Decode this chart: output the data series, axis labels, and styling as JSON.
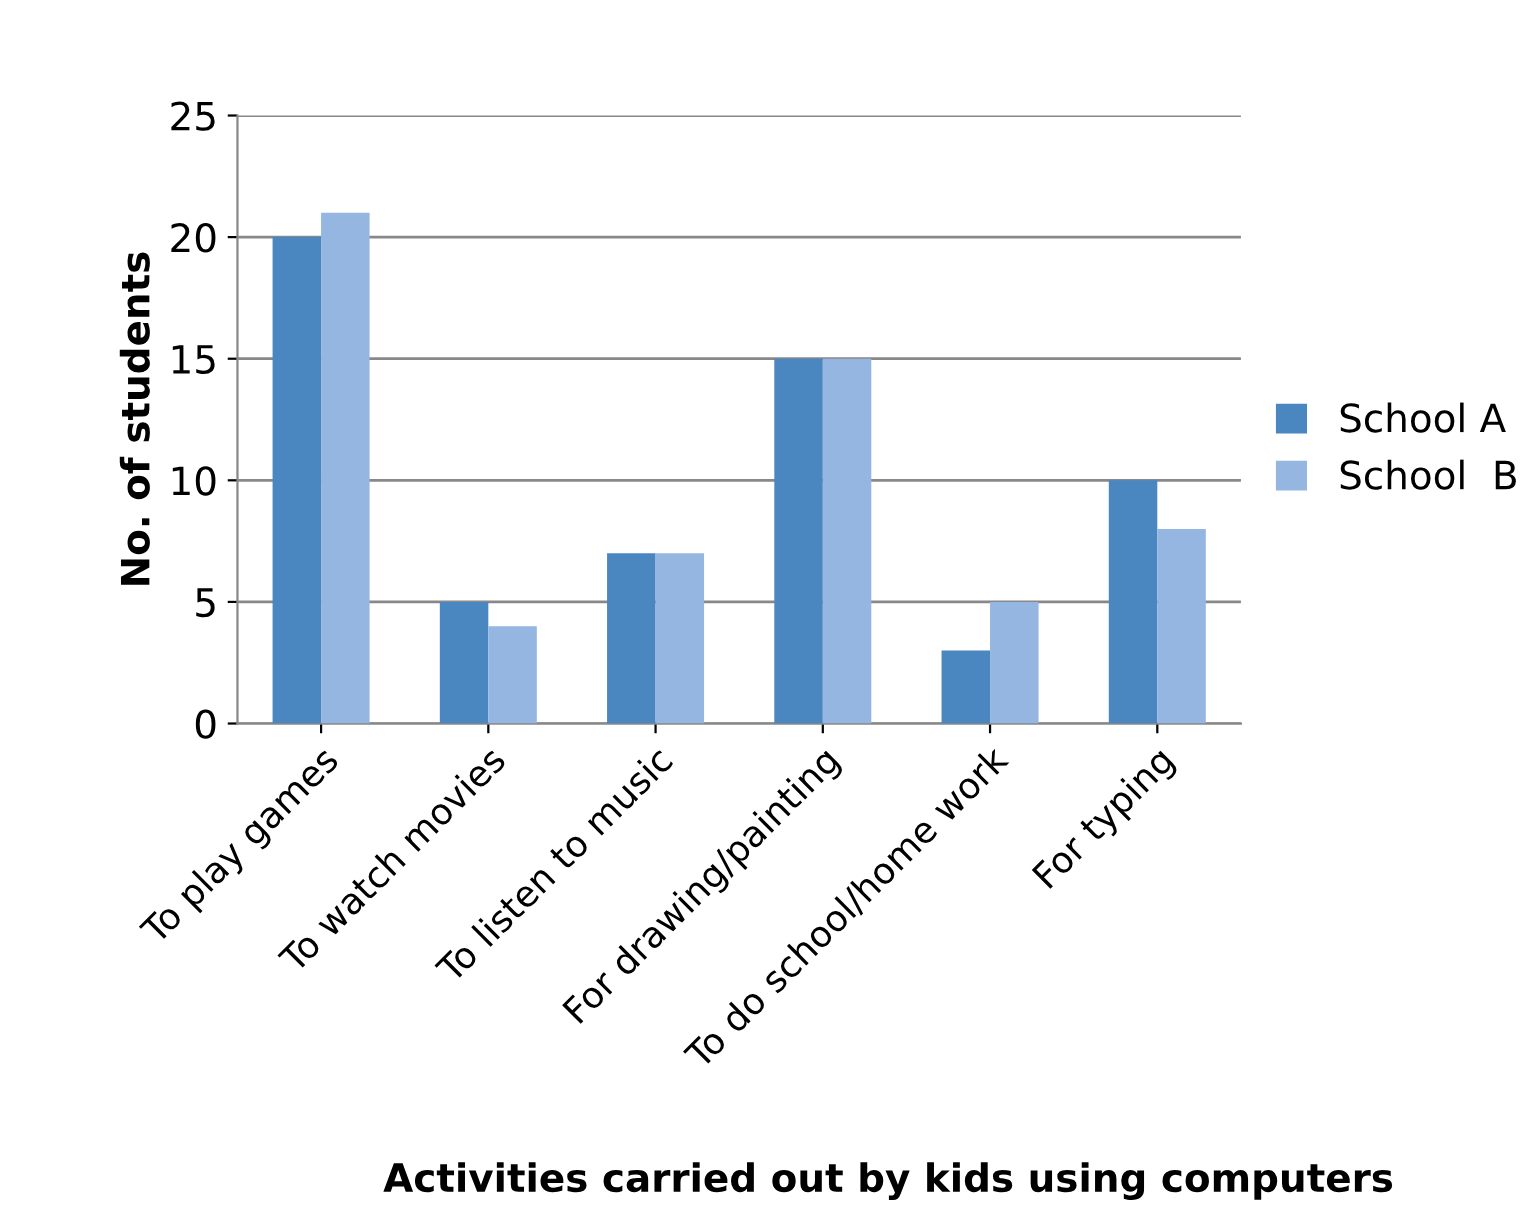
{
  "chart_data": {
    "type": "bar",
    "xlabel": "Activities carried out by kids using computers",
    "ylabel": "No. of students",
    "categories": [
      "To play games",
      "To watch movies",
      "To listen to music",
      "For drawing/painting",
      "To do school/home work",
      "For typing"
    ],
    "series": [
      {
        "name": "School A",
        "color": "#4a86c0",
        "values": [
          20,
          5,
          7,
          15,
          3,
          10
        ]
      },
      {
        "name": "School  B",
        "color": "#94b6e0",
        "values": [
          21,
          4,
          7,
          15,
          5,
          8
        ]
      }
    ],
    "ylim": [
      0,
      25
    ],
    "yticks": [
      0,
      5,
      10,
      15,
      20,
      25
    ],
    "grid": "y",
    "legend": "right"
  }
}
